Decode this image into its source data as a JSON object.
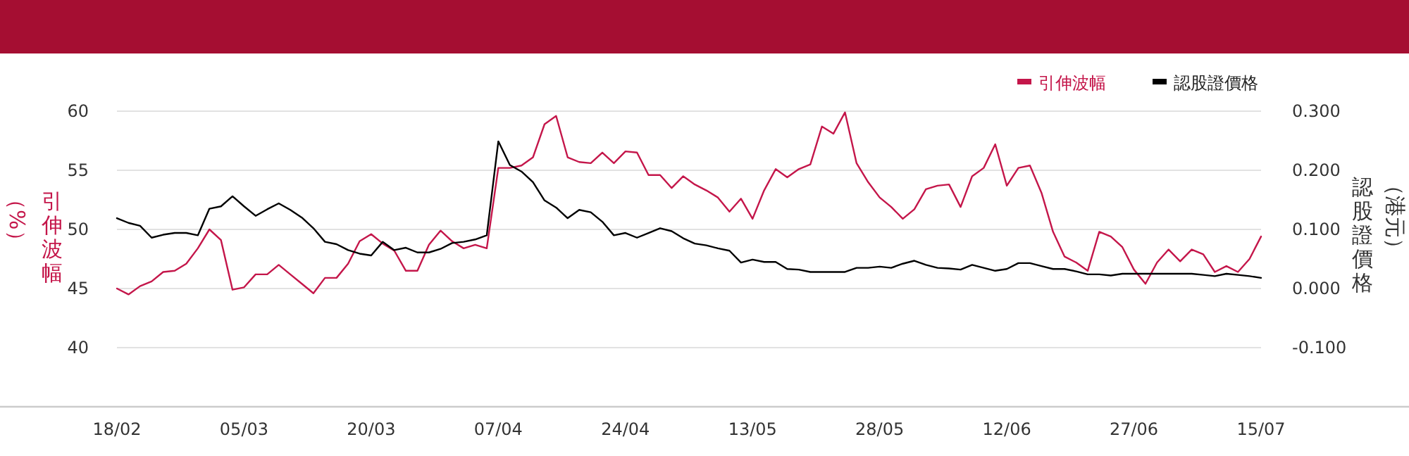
{
  "chart_data": {
    "type": "line",
    "categories": [
      "18/02",
      null,
      null,
      null,
      null,
      null,
      null,
      null,
      null,
      null,
      null,
      "05/03",
      null,
      null,
      null,
      null,
      null,
      null,
      null,
      null,
      null,
      null,
      "20/03",
      null,
      null,
      null,
      null,
      null,
      null,
      null,
      null,
      null,
      null,
      "07/04",
      null,
      null,
      null,
      null,
      null,
      null,
      null,
      null,
      null,
      null,
      "24/04",
      null,
      null,
      null,
      null,
      null,
      null,
      null,
      null,
      null,
      null,
      "13/05",
      null,
      null,
      null,
      null,
      null,
      null,
      null,
      null,
      null,
      null,
      "28/05",
      null,
      null,
      null,
      null,
      null,
      null,
      null,
      null,
      null,
      null,
      "12/06",
      null,
      null,
      null,
      null,
      null,
      null,
      null,
      null,
      null,
      null,
      "27/06",
      null,
      null,
      null,
      null,
      null,
      null,
      null,
      null,
      null,
      null,
      "15/07"
    ],
    "ylabel": "引伸波幅（%）",
    "y2label": "認股證價格（港元）",
    "ylim": [
      35,
      60
    ],
    "yticks": [
      40,
      45,
      50,
      55,
      60
    ],
    "y2lim": [
      -0.2,
      0.3
    ],
    "y2ticks": [
      {
        "value": -0.1,
        "label": "-0.100"
      },
      {
        "value": 0,
        "label": "0.000"
      },
      {
        "value": 0.1,
        "label": "0.100"
      },
      {
        "value": 0.2,
        "label": "0.200"
      },
      {
        "value": 0.3,
        "label": "0.300"
      }
    ],
    "grid": "y",
    "legend": "top right",
    "series": [
      {
        "name": "引伸波幅",
        "color": "#c4164a",
        "values": [
          45.0,
          44.5,
          45.2,
          45.6,
          46.4,
          46.5,
          47.1,
          48.4,
          50.0,
          49.1,
          44.9,
          45.1,
          46.2,
          46.2,
          47.0,
          46.2,
          45.4,
          44.6,
          45.9,
          45.9,
          47.1,
          49.0,
          49.6,
          48.8,
          48.2,
          46.5,
          46.5,
          48.7,
          49.9,
          49.0,
          48.4,
          48.7,
          48.4,
          55.2,
          55.2,
          55.4,
          56.1,
          58.9,
          59.6,
          56.1,
          55.7,
          55.6,
          56.5,
          55.6,
          56.6,
          56.5,
          54.6,
          54.6,
          53.5,
          54.5,
          53.8,
          53.3,
          52.7,
          51.5,
          52.6,
          50.9,
          53.3,
          55.1,
          54.4,
          55.1,
          55.5,
          58.7,
          58.1,
          59.9,
          55.6,
          54.0,
          52.7,
          51.9,
          50.9,
          51.7,
          53.4,
          53.7,
          53.8,
          51.9,
          54.5,
          55.2,
          57.2,
          53.7,
          55.2,
          55.4,
          53.1,
          49.8,
          47.7,
          47.2,
          46.5,
          49.8,
          49.4,
          48.5,
          46.6,
          45.4,
          47.2,
          48.3,
          47.3,
          48.3,
          47.9,
          46.4,
          46.9,
          46.4,
          47.5,
          49.4
        ]
      },
      {
        "name": "認股證價格",
        "color": "#000000",
        "axis": "y2",
        "values": [
          0.119,
          0.111,
          0.106,
          0.086,
          0.091,
          0.094,
          0.094,
          0.09,
          0.135,
          0.139,
          0.156,
          0.139,
          0.123,
          0.134,
          0.144,
          0.133,
          0.12,
          0.102,
          0.079,
          0.075,
          0.065,
          0.059,
          0.056,
          0.079,
          0.065,
          0.069,
          0.061,
          0.061,
          0.067,
          0.077,
          0.079,
          0.083,
          0.09,
          0.249,
          0.209,
          0.198,
          0.18,
          0.149,
          0.137,
          0.119,
          0.133,
          0.129,
          0.113,
          0.09,
          0.094,
          0.086,
          0.094,
          0.102,
          0.097,
          0.085,
          0.076,
          0.073,
          0.068,
          0.064,
          0.044,
          0.049,
          0.045,
          0.045,
          0.033,
          0.032,
          0.028,
          0.028,
          0.028,
          0.028,
          0.035,
          0.035,
          0.037,
          0.035,
          0.042,
          0.047,
          0.04,
          0.035,
          0.034,
          0.032,
          0.04,
          0.035,
          0.03,
          0.033,
          0.043,
          0.043,
          0.038,
          0.033,
          0.033,
          0.029,
          0.024,
          0.024,
          0.022,
          0.025,
          0.025,
          0.025,
          0.025,
          0.025,
          0.025,
          0.025,
          0.023,
          0.021,
          0.025,
          0.023,
          0.021,
          0.018
        ]
      }
    ]
  }
}
